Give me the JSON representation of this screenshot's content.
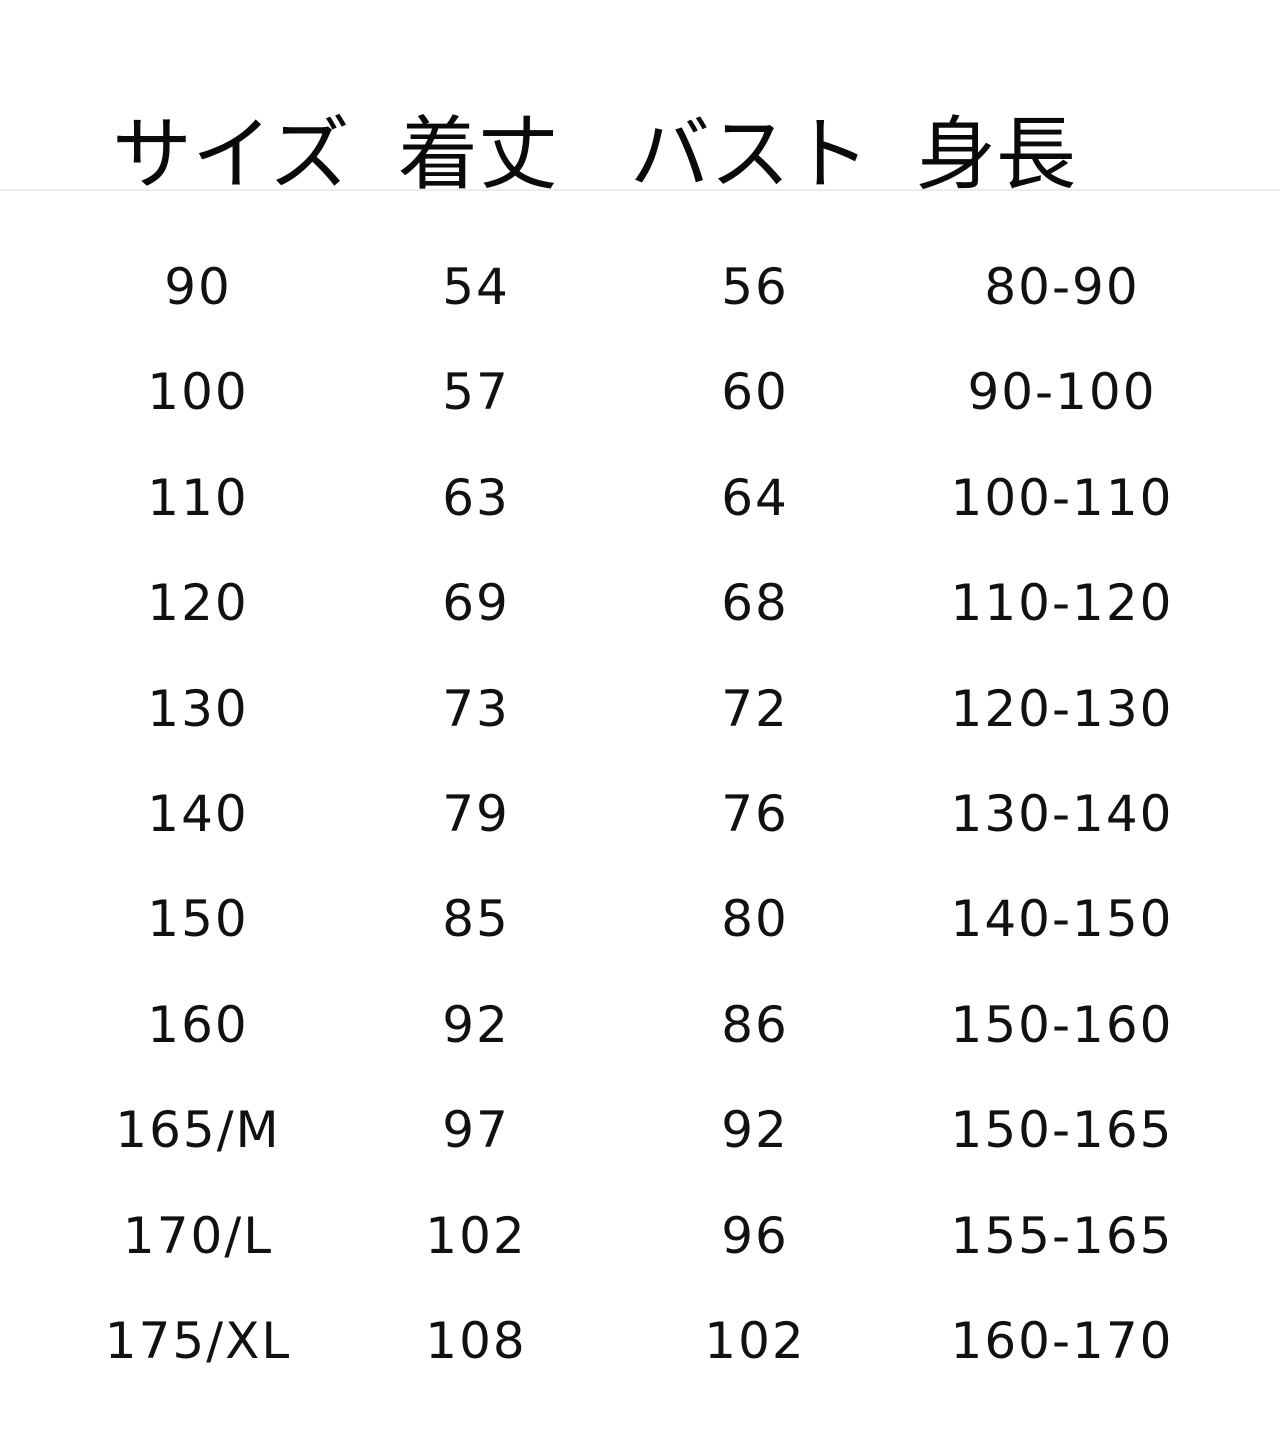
{
  "headers": [
    "サイズ",
    "着丈",
    "バスト",
    "身長"
  ],
  "rows": [
    [
      "90",
      "54",
      "56",
      "80-90"
    ],
    [
      "100",
      "57",
      "60",
      "90-100"
    ],
    [
      "110",
      "63",
      "64",
      "100-110"
    ],
    [
      "120",
      "69",
      "68",
      "110-120"
    ],
    [
      "130",
      "73",
      "72",
      "120-130"
    ],
    [
      "140",
      "79",
      "76",
      "130-140"
    ],
    [
      "150",
      "85",
      "80",
      "140-150"
    ],
    [
      "160",
      "92",
      "86",
      "150-160"
    ],
    [
      "165/M",
      "97",
      "92",
      "150-165"
    ],
    [
      "170/L",
      "102",
      "96",
      "155-165"
    ],
    [
      "175/XL",
      "108",
      "102",
      "160-170"
    ]
  ]
}
